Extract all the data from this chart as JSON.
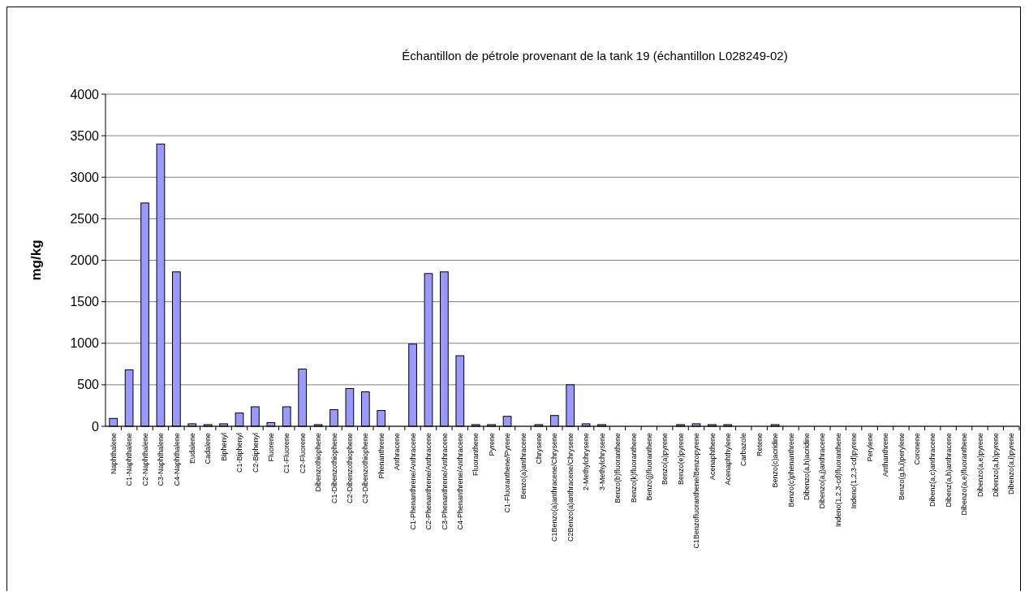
{
  "chart_data": {
    "type": "bar",
    "title": "Échantillon de pétrole provenant de la tank 19 (échantillon L028249-02)",
    "ylabel": "mg/kg",
    "categories": [
      "Naphthalene",
      "C1-Naphthalene",
      "C2-Naphthalene",
      "C3-Naphthalene",
      "C4-Naphthalene",
      "Eudalene",
      "Cadalene",
      "Biphenyl",
      "C1-Biphenyl",
      "C2-Biphenyl",
      "Fluorene",
      "C1-Fluorene",
      "C2-Fluorene",
      "Dibenzothiophene",
      "C1-Dibenzothiophene",
      "C2-Dibenzothiophene",
      "C3-Dibenzothiophene",
      "Phenanthrene",
      "Anthracene",
      "C1-Phenanthrene/Anthracene",
      "C2-Phenanthrene/Anthracene",
      "C3-Phenanthrene/Anthracene",
      "C4-Phenanthrene/Anthracene",
      "Fluoranthene",
      "Pyrene",
      "C1-Fluoranthene/Pyrene",
      "Benzo(a)anthracene",
      "Chrysene",
      "C1Benzo(a)anthracene/Chrysene",
      "C2Benzo(a)anthracene/Chrysene",
      "2-Methylchrysene",
      "3-Methylchrysene",
      "Benzo(b)fluoranthene",
      "Benzo(k)fluoranthene",
      "Benzo(j)fluoranthene",
      "Benzo(a)pyrene",
      "Benzo(e)pyrene",
      "C1Benzofluoranthene/Benzopyrene",
      "Acenaphthene",
      "Acenaphthylene",
      "Carbazole",
      "Retene",
      "Benzo(c)acridine",
      "Benzo(c)phenanthrene",
      "Dibenzo(a,h)acridine",
      "Dibenzo(a,j)anthracene",
      "Indeno(1,2,3-cd)fluoranthene",
      "Indeno(1,2,3-cd)pyrene",
      "Perylene",
      "Anthanthrene",
      "Benzo(g,h,i)perylene",
      "Coronene",
      "Dibenz(a,c)anthracene",
      "Dibenz(a,h)anthracene",
      "Dibenzo(a,e)fluoranthene",
      "Dibenzo(a,e)pyrene",
      "Dibenzo(a,h)pyrene",
      "Dibenzo(a,i)pyrene"
    ],
    "values": [
      95,
      680,
      2690,
      3400,
      1860,
      30,
      20,
      30,
      160,
      235,
      45,
      235,
      690,
      20,
      200,
      455,
      415,
      190,
      0,
      990,
      1840,
      1860,
      850,
      20,
      20,
      120,
      0,
      20,
      130,
      500,
      30,
      20,
      0,
      0,
      0,
      0,
      20,
      30,
      20,
      20,
      0,
      0,
      20,
      0,
      0,
      0,
      0,
      0,
      0,
      0,
      0,
      0,
      0,
      0,
      0,
      0,
      0,
      0
    ],
    "color": "#9999ff",
    "ylim": [
      0,
      4000
    ],
    "yticks": [
      0,
      500,
      1000,
      1500,
      2000,
      2500,
      3000,
      3500,
      4000
    ],
    "grid": "y"
  }
}
